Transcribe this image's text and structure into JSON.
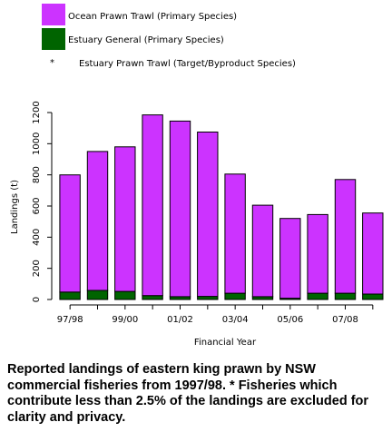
{
  "chart_data": {
    "type": "bar",
    "stacked": true,
    "categories": [
      "1997/98",
      "1998/99",
      "1999/00",
      "2000/01",
      "2001/02",
      "2002/03",
      "2003/04",
      "2004/05",
      "2005/06",
      "2006/07",
      "2007/08",
      "2008/09"
    ],
    "tick_labels": [
      "97/98",
      "",
      "99/00",
      "",
      "01/02",
      "",
      "03/04",
      "",
      "05/06",
      "",
      "07/08",
      ""
    ],
    "series": [
      {
        "name": "Estuary General (Primary Species)",
        "color": "#006400",
        "values": [
          48,
          58,
          52,
          25,
          18,
          20,
          40,
          18,
          8,
          40,
          40,
          35
        ]
      },
      {
        "name": "Ocean Prawn Trawl (Primary Species)",
        "color": "#cc33ff",
        "values": [
          752,
          892,
          928,
          1160,
          1127,
          1055,
          765,
          587,
          512,
          505,
          730,
          520
        ]
      }
    ],
    "extra_legend": {
      "symbol": "*",
      "label": "Estuary Prawn Trawl (Target/Byproduct Species)"
    },
    "xlabel": "Financial Year",
    "ylabel": "Landings (t)",
    "ylim": [
      0,
      1200
    ],
    "yticks": [
      "0",
      "200",
      "400",
      "600",
      "800",
      "1000",
      "1200"
    ],
    "legend_position": "top-left",
    "grid": false
  },
  "caption": "Reported landings of eastern king prawn by NSW commercial fisheries from 1997/98. * Fisheries which contribute less than 2.5% of the landings are excluded for clarity and privacy."
}
